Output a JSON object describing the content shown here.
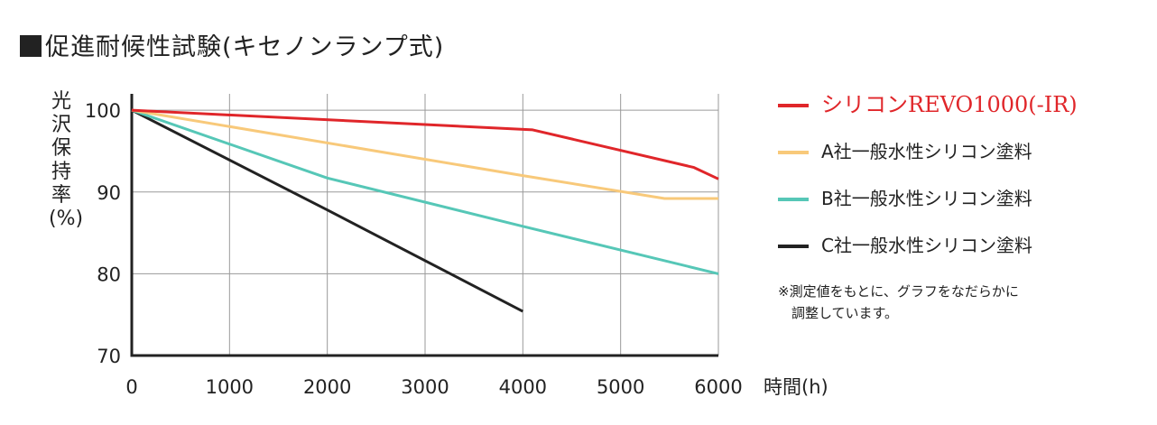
{
  "title": "促進耐候性試験(キセノンランプ式)",
  "ylabel": "光沢保持率(%)",
  "xunit_label": "時間(h)",
  "note_lines": [
    "※測定値をもとに、グラフをなだらかに",
    "　調整しています。"
  ],
  "colors": {
    "red": "#e0262a",
    "yellow": "#f8c97a",
    "teal": "#56c7b7",
    "black": "#222222"
  },
  "chart_data": {
    "type": "line",
    "title": "促進耐候性試験(キセノンランプ式)",
    "xlabel": "時間(h)",
    "ylabel": "光沢保持率(%)",
    "xlim": [
      0,
      6000
    ],
    "ylim": [
      70,
      102
    ],
    "xticks": [
      0,
      1000,
      2000,
      3000,
      4000,
      5000,
      6000
    ],
    "yticks": [
      70,
      80,
      90,
      100
    ],
    "grid": true,
    "legend_position": "right",
    "series": [
      {
        "name": "シリコンREVO1000(-IR)",
        "color": "#e0262a",
        "points": [
          [
            0,
            100
          ],
          [
            4100,
            97.6
          ],
          [
            5750,
            93
          ],
          [
            6000,
            91.6
          ]
        ]
      },
      {
        "name": "A社一般水性シリコン塗料",
        "color": "#f8c97a",
        "points": [
          [
            0,
            100
          ],
          [
            4000,
            92
          ],
          [
            5450,
            89.2
          ],
          [
            6000,
            89.2
          ]
        ]
      },
      {
        "name": "B社一般水性シリコン塗料",
        "color": "#56c7b7",
        "points": [
          [
            0,
            100
          ],
          [
            2000,
            91.7
          ],
          [
            4000,
            85.8
          ],
          [
            6000,
            80
          ]
        ]
      },
      {
        "name": "C社一般水性シリコン塗料",
        "color": "#222222",
        "points": [
          [
            0,
            100
          ],
          [
            2000,
            87.8
          ],
          [
            4000,
            75.4
          ]
        ]
      }
    ]
  }
}
